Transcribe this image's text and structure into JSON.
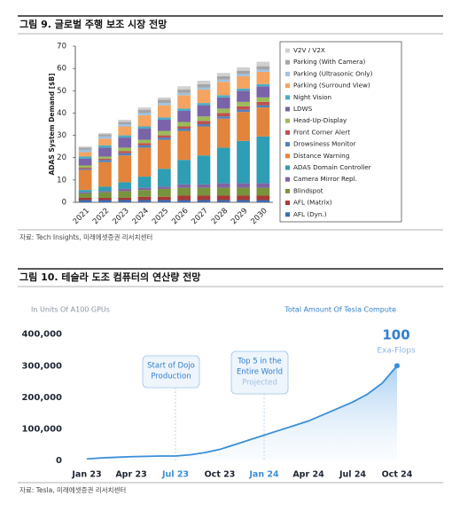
{
  "chart_data": [
    {
      "type": "bar",
      "stacked": true,
      "title": "그림 9. 글로벌 주행 보조 시장 전망",
      "source": "자료: Tech Insights, 미래에셋증권 리서치센터",
      "ylabel": "ADAS System Demand [$B]",
      "categories": [
        "2021",
        "2022",
        "2023",
        "2024",
        "2025",
        "2026",
        "2027",
        "2028",
        "2029",
        "2030"
      ],
      "ylim": [
        0,
        70
      ],
      "yticks": [
        0,
        10,
        20,
        30,
        40,
        50,
        60,
        70
      ],
      "grid": false,
      "series": [
        {
          "name": "V2V / V2X",
          "color": "#d0d0d0",
          "values": [
            0.5,
            0.5,
            1,
            1,
            1,
            1.5,
            1.5,
            1.5,
            1.5,
            2
          ]
        },
        {
          "name": "Parking (With Camera)",
          "color": "#a5a5a5",
          "values": [
            1,
            1,
            1,
            1.5,
            1.5,
            1.5,
            1.5,
            1.5,
            1.5,
            1.5
          ]
        },
        {
          "name": "Parking (Ultrasonic Only)",
          "color": "#9dc3e6",
          "values": [
            1,
            1,
            1,
            1,
            1,
            1,
            1,
            1,
            1,
            1
          ]
        },
        {
          "name": "Parking (Surround View)",
          "color": "#f4a460",
          "values": [
            2,
            3,
            4,
            5,
            5.5,
            6,
            6,
            6,
            5.5,
            5.5
          ]
        },
        {
          "name": "Night Vision",
          "color": "#4bacc6",
          "values": [
            1,
            1,
            1,
            1,
            1,
            1,
            1,
            1,
            1,
            1
          ]
        },
        {
          "name": "LDWS",
          "color": "#7a63a8",
          "values": [
            3,
            4,
            4.5,
            5,
            5,
            5,
            5,
            5,
            5,
            5
          ]
        },
        {
          "name": "Head-Up-Display",
          "color": "#9bbb59",
          "values": [
            1,
            1,
            1.5,
            1.5,
            2,
            2,
            2,
            2,
            2,
            2
          ]
        },
        {
          "name": "Front Corner Alert",
          "color": "#c0504d",
          "values": [
            0.5,
            0.5,
            1,
            1,
            1,
            1,
            1.5,
            1.5,
            1.5,
            1.5
          ]
        },
        {
          "name": "Drowsiness Monitor",
          "color": "#4f81bd",
          "values": [
            0.5,
            1,
            1,
            1,
            1,
            1,
            1,
            1,
            1,
            1
          ]
        },
        {
          "name": "Distance Warning",
          "color": "#e2843c",
          "values": [
            9,
            11,
            12,
            13,
            13,
            13,
            13,
            13,
            13,
            13
          ]
        },
        {
          "name": "ADAS Domain Controller",
          "color": "#2f9db3",
          "values": [
            1,
            2,
            3,
            5,
            8,
            11,
            13,
            16,
            19,
            21
          ]
        },
        {
          "name": "Camera Mirror Repl.",
          "color": "#8064a2",
          "values": [
            0.5,
            0.5,
            1,
            1,
            1,
            1.5,
            1.5,
            2,
            2,
            2
          ]
        },
        {
          "name": "Blindspot",
          "color": "#77933c",
          "values": [
            2,
            2.5,
            3,
            3,
            3.5,
            3.5,
            3.5,
            3.5,
            3.5,
            3.5
          ]
        },
        {
          "name": "AFL (Matrix)",
          "color": "#a83a36",
          "values": [
            1,
            1,
            1,
            1.5,
            1.5,
            2,
            2,
            2,
            2,
            2
          ]
        },
        {
          "name": "AFL (Dyn.)",
          "color": "#3c6eb4",
          "values": [
            1,
            1,
            1,
            1,
            1,
            1,
            1,
            1,
            1,
            1
          ]
        }
      ]
    },
    {
      "type": "line",
      "title": "그림 10. 테슬라 도조 컴퓨터의 연산량 전망",
      "source": "자료: Tesla, 미래에셋증권 리서치센터",
      "subtitle": "In Units Of A100 GPUs",
      "caption": "Total Amount Of Tesla Compute",
      "end_label": "100",
      "end_unit": "Exa-Flops",
      "categories": [
        "Jan 23",
        null,
        null,
        "Apr 23",
        null,
        null,
        "Jul 23",
        null,
        null,
        "Oct 23",
        null,
        null,
        "Jan 24",
        null,
        null,
        "Apr 24",
        null,
        null,
        "Jul 24",
        null,
        null,
        "Oct 24"
      ],
      "values": [
        5000,
        8000,
        10000,
        12000,
        13000,
        14000,
        14000,
        18000,
        25000,
        35000,
        50000,
        65000,
        80000,
        95000,
        110000,
        125000,
        145000,
        165000,
        185000,
        210000,
        245000,
        300000
      ],
      "color": "#3a8fd8",
      "ylim": [
        0,
        430000
      ],
      "yticks": [
        0,
        {
          "value": 100000,
          "label": "100,000"
        },
        {
          "value": 200000,
          "label": "200,000"
        },
        {
          "value": 300000,
          "label": "300,000"
        },
        {
          "value": 400000,
          "label": "400,000"
        }
      ],
      "annotations": [
        {
          "x": "Jul 23",
          "lines": [
            "Start of Dojo",
            "Production"
          ]
        },
        {
          "x": "Jan 24",
          "lines": [
            "Top 5 in the",
            "Entire World"
          ],
          "note": "Projected"
        }
      ]
    }
  ]
}
